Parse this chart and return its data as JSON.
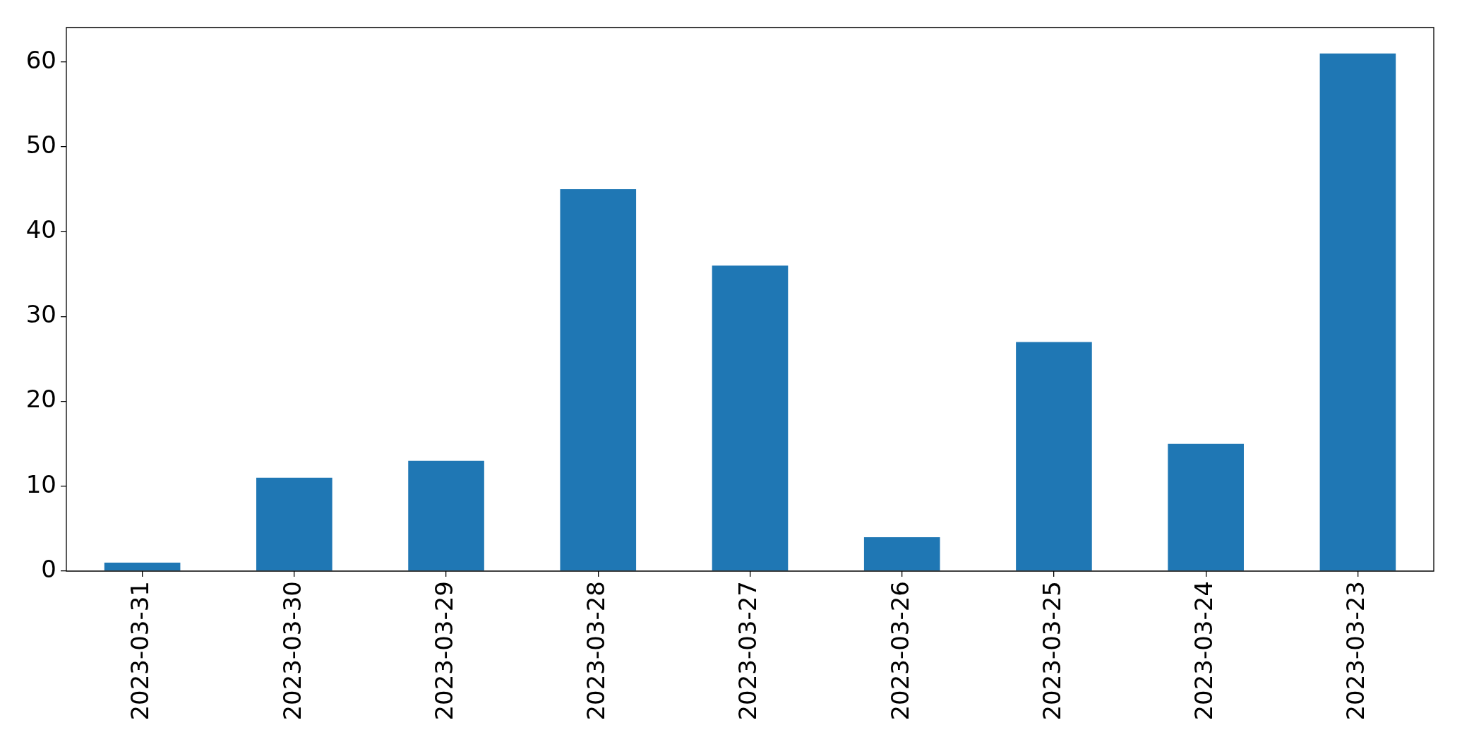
{
  "chart_data": {
    "type": "bar",
    "categories": [
      "2023-03-31",
      "2023-03-30",
      "2023-03-29",
      "2023-03-28",
      "2023-03-27",
      "2023-03-26",
      "2023-03-25",
      "2023-03-24",
      "2023-03-23"
    ],
    "values": [
      1,
      11,
      13,
      45,
      36,
      4,
      27,
      15,
      61
    ],
    "color": "#1f77b4",
    "ylim": [
      0,
      64.05
    ],
    "yticks": [
      0,
      10,
      20,
      30,
      40,
      50,
      60
    ]
  }
}
